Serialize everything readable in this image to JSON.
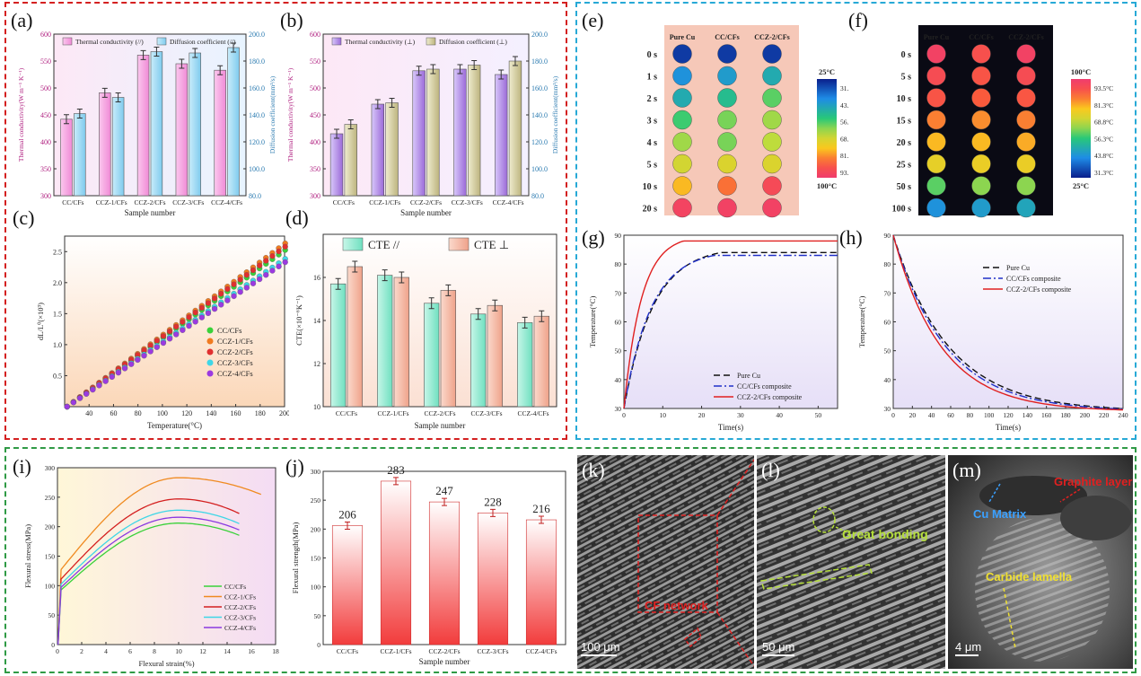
{
  "colors": {
    "red_frame": "#d42020",
    "blue_frame": "#27a9d6",
    "green_frame": "#2f9a45",
    "pink": "#f08ad6",
    "lightblue": "#8fd3f0",
    "purple": "#9b6ad8",
    "khaki": "#c9c08a",
    "teal": "#7fe6c8",
    "salmon": "#f0a08a",
    "red": "#f04040",
    "hot": "#e62020"
  },
  "panels": {
    "a": "(a)",
    "b": "(b)",
    "c": "(c)",
    "d": "(d)",
    "e": "(e)",
    "f": "(f)",
    "g": "(g)",
    "h": "(h)",
    "i": "(i)",
    "j": "(j)",
    "k": "(k)",
    "l": "(l)",
    "m": "(m)"
  },
  "chart_data": [
    {
      "id": "a",
      "type": "bar",
      "categories": [
        "CC/CFs",
        "CCZ-1/CFs",
        "CCZ-2/CFs",
        "CCZ-3/CFs",
        "CCZ-4/CFs"
      ],
      "series": [
        {
          "name": "Thermal conductivity (//)",
          "values": [
            442,
            491,
            561,
            545,
            533
          ],
          "axis": "left"
        },
        {
          "name": "Diffusion coefficient (//)",
          "values": [
            141,
            153,
            187,
            186,
            190
          ],
          "axis": "right"
        }
      ],
      "xlabel": "Sample number",
      "ylabel": "Thermal conductivity(W m⁻¹ K⁻¹)",
      "ylabel2": "Diffusion coefficient(mm²/s)",
      "ylim": [
        300,
        600
      ],
      "yticks": [
        "300",
        "350",
        "400",
        "450",
        "500",
        "550",
        "600"
      ],
      "ylim2": [
        80,
        200
      ],
      "yticks2": [
        "80.0",
        "100.0",
        "120.0",
        "140.0",
        "160.0",
        "180.0",
        "200.0"
      ]
    },
    {
      "id": "b",
      "type": "bar",
      "categories": [
        "CC/CFs",
        "CCZ-1/CFs",
        "CCZ-2/CFs",
        "CCZ-3/CFs",
        "CCZ-4/CFs"
      ],
      "series": [
        {
          "name": "Thermal conductivity (⊥)",
          "values": [
            415,
            470,
            532,
            535,
            525
          ],
          "axis": "left"
        },
        {
          "name": "Diffusion coefficient (⊥)",
          "values": [
            133,
            149,
            174,
            177,
            180
          ],
          "axis": "right"
        }
      ],
      "xlabel": "Sample number",
      "ylabel": "Thermal conductivity(W m⁻¹ K⁻¹)",
      "ylabel2": "Diffusion coefficient(mm²/s)",
      "ylim": [
        300,
        600
      ],
      "yticks": [
        "300",
        "350",
        "400",
        "450",
        "500",
        "550",
        "600"
      ],
      "ylim2": [
        80,
        200
      ],
      "yticks2": [
        "80.0",
        "100.0",
        "120.0",
        "140.0",
        "160.0",
        "180.0",
        "200.0"
      ]
    },
    {
      "id": "c",
      "type": "scatter",
      "x_range": [
        20,
        200
      ],
      "xticks": [
        "40",
        "60",
        "80",
        "100",
        "120",
        "140",
        "160",
        "180",
        "200"
      ],
      "yticks": [
        "0.5",
        "1.0",
        "1.5",
        "2.0",
        "2.5"
      ],
      "ylim": [
        0,
        2.75
      ],
      "xlabel": "Temperature(°C)",
      "ylabel": "dL/L⁰(×10³)",
      "series": [
        {
          "name": "CC/CFs",
          "slope": 0.01415,
          "color": "#3ad13a"
        },
        {
          "name": "CCZ-1/CFs",
          "slope": 0.01475,
          "color": "#f07a20"
        },
        {
          "name": "CCZ-2/CFs",
          "slope": 0.01445,
          "color": "#e03030"
        },
        {
          "name": "CCZ-3/CFs",
          "slope": 0.01335,
          "color": "#3ed6e6"
        },
        {
          "name": "CCZ-4/CFs",
          "slope": 0.01305,
          "color": "#9b3ae0"
        }
      ]
    },
    {
      "id": "d",
      "type": "bar",
      "categories": [
        "CC/CFs",
        "CCZ-1/CFs",
        "CCZ-2/CFs",
        "CCZ-3/CFs",
        "CCZ-4/CFs"
      ],
      "series": [
        {
          "name": "CTE //",
          "values": [
            15.7,
            16.1,
            14.8,
            14.3,
            13.9
          ]
        },
        {
          "name": "CTE ⊥",
          "values": [
            16.5,
            16.0,
            15.4,
            14.7,
            14.2
          ]
        }
      ],
      "xlabel": "Sample number",
      "ylabel": "CTE(×10⁻⁶K⁻¹)",
      "ylim": [
        10,
        18
      ],
      "yticks": [
        "10",
        "12",
        "14",
        "16"
      ]
    },
    {
      "id": "g",
      "type": "line",
      "xlabel": "Time(s)",
      "ylabel": "Temperature(°C)",
      "xlim": [
        0,
        55
      ],
      "ylim": [
        30,
        90
      ],
      "xticks": [
        "0",
        "10",
        "20",
        "30",
        "40",
        "50"
      ],
      "yticks": [
        "30",
        "40",
        "50",
        "60",
        "70",
        "80",
        "90"
      ],
      "series": [
        {
          "name": "Pure Cu",
          "color": "#111",
          "dash": "7,4"
        },
        {
          "name": "CC/CFs composite",
          "color": "#2030c8",
          "dash": "9,3,2,3"
        },
        {
          "name": "CCZ-2/CFs composite",
          "color": "#e02020",
          "dash": ""
        }
      ]
    },
    {
      "id": "h",
      "type": "line",
      "xlabel": "Time(s)",
      "ylabel": "Temperature(°C)",
      "xlim": [
        0,
        240
      ],
      "ylim": [
        30,
        90
      ],
      "xticks": [
        "0",
        "20",
        "40",
        "60",
        "80",
        "100",
        "120",
        "140",
        "160",
        "180",
        "200",
        "220",
        "240"
      ],
      "yticks": [
        "30",
        "40",
        "50",
        "60",
        "70",
        "80",
        "90"
      ],
      "series": [
        {
          "name": "Pure Cu",
          "color": "#111",
          "dash": "7,4"
        },
        {
          "name": "CC/CFs composite",
          "color": "#2030c8",
          "dash": "9,3,2,3"
        },
        {
          "name": "CCZ-2/CFs composite",
          "color": "#e02020",
          "dash": ""
        }
      ]
    },
    {
      "id": "i",
      "type": "line",
      "xlabel": "Flexural strain(%)",
      "ylabel": "Flexural stress(MPa)",
      "xlim": [
        0,
        18
      ],
      "ylim": [
        0,
        300
      ],
      "xticks": [
        "0",
        "2",
        "4",
        "6",
        "8",
        "10",
        "12",
        "14",
        "16",
        "18"
      ],
      "yticks": [
        "0",
        "50",
        "100",
        "150",
        "200",
        "250",
        "300"
      ],
      "series": [
        {
          "name": "CC/CFs",
          "color": "#3ad13a",
          "peak": 206,
          "end": 15
        },
        {
          "name": "CCZ-1/CFs",
          "color": "#f08a20",
          "peak": 283,
          "end": 16.8
        },
        {
          "name": "CCZ-2/CFs",
          "color": "#d42020",
          "peak": 247,
          "end": 15
        },
        {
          "name": "CCZ-3/CFs",
          "color": "#3ed6e6",
          "peak": 228,
          "end": 15
        },
        {
          "name": "CCZ-4/CFs",
          "color": "#8a3ae0",
          "peak": 216,
          "end": 15
        }
      ]
    },
    {
      "id": "j",
      "type": "bar",
      "categories": [
        "CC/CFs",
        "CCZ-1/CFs",
        "CCZ-2/CFs",
        "CCZ-3/CFs",
        "CCZ-4/CFs"
      ],
      "values": [
        206,
        283,
        247,
        228,
        216
      ],
      "labels": [
        "206",
        "283",
        "247",
        "228",
        "216"
      ],
      "xlabel": "Sample number",
      "ylabel": "Flexural strength(MPa)",
      "ylim": [
        0,
        300
      ],
      "yticks": [
        "0",
        "50",
        "100",
        "150",
        "200",
        "250",
        "300"
      ]
    }
  ],
  "heat_e": {
    "columns": [
      "Pure Cu",
      "CC/CFs",
      "CCZ-2/CFs"
    ],
    "rows": [
      "0 s",
      "1 s",
      "2 s",
      "3 s",
      "4 s",
      "5 s",
      "10 s",
      "20 s"
    ],
    "scale_top": "25°C",
    "scale_bottom": "100°C",
    "scale_ticks": [
      "31.3°C",
      "43.8°C",
      "56.3°C",
      "68.8°C",
      "81.3°C",
      "93.5°C"
    ]
  },
  "heat_f": {
    "columns": [
      "Pure Cu",
      "CC/CFs",
      "CCZ-2/CFs"
    ],
    "rows": [
      "0 s",
      "5 s",
      "10 s",
      "15 s",
      "20 s",
      "25 s",
      "50 s",
      "100 s"
    ],
    "scale_top": "100°C",
    "scale_bottom": "25°C",
    "scale_ticks": [
      "93.5°C",
      "81.3°C",
      "68.8°C",
      "56.3°C",
      "43.8°C",
      "31.3°C"
    ]
  },
  "sem": {
    "k_label": "CF network",
    "k_scale": "100 μm",
    "l_label": "Great bonding",
    "l_scale": "50 μm",
    "m_labels": [
      "Cu Matrix",
      "Graphite layer",
      "Carbide lamella"
    ],
    "m_scale": "4 μm"
  }
}
